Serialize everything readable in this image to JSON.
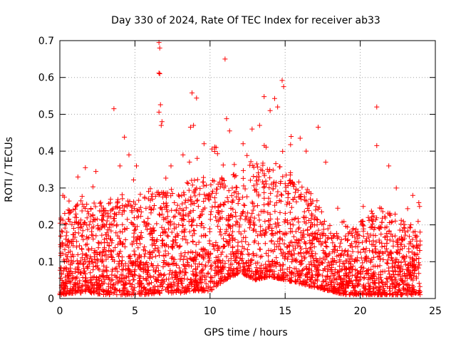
{
  "chart_data": {
    "type": "scatter",
    "title": "Day 330 of 2024, Rate Of TEC Index for receiver ab33",
    "xlabel": "GPS time / hours",
    "ylabel": "ROTI / TECUs",
    "xlim": [
      0,
      25
    ],
    "ylim": [
      0,
      0.7
    ],
    "xticks": [
      0,
      5,
      10,
      15,
      20,
      25
    ],
    "xtick_labels": [
      "0",
      "5",
      "10",
      "15",
      "20",
      "25"
    ],
    "yticks": [
      0,
      0.1,
      0.2,
      0.3,
      0.4,
      0.5,
      0.6,
      0.7
    ],
    "ytick_labels": [
      "0",
      "0.1",
      "0.2",
      "0.3",
      "0.4",
      "0.5",
      "0.6",
      "0.7"
    ],
    "grid": true,
    "marker": "plus",
    "marker_color": "#ff0000",
    "envelope_note_x": [
      0,
      1,
      2,
      3,
      4,
      5,
      6,
      7,
      8,
      9,
      10,
      11,
      12,
      13,
      14,
      15,
      16,
      17,
      18,
      19,
      20,
      21,
      22,
      23,
      24
    ],
    "series": [
      {
        "name": "",
        "points": [
          [
            3.6,
            0.515
          ],
          [
            4.3,
            0.438
          ],
          [
            6.6,
            0.695
          ],
          [
            6.65,
            0.68
          ],
          [
            6.6,
            0.612
          ],
          [
            6.65,
            0.61
          ],
          [
            6.7,
            0.526
          ],
          [
            6.6,
            0.506
          ],
          [
            8.8,
            0.558
          ],
          [
            9.1,
            0.544
          ],
          [
            11.0,
            0.65
          ],
          [
            11.1,
            0.488
          ],
          [
            13.6,
            0.548
          ],
          [
            14.3,
            0.543
          ],
          [
            14.8,
            0.592
          ],
          [
            14.9,
            0.575
          ],
          [
            14.0,
            0.51
          ],
          [
            14.5,
            0.52
          ],
          [
            17.2,
            0.465
          ],
          [
            21.1,
            0.52
          ],
          [
            21.1,
            0.415
          ],
          [
            8.7,
            0.465
          ],
          [
            8.9,
            0.47
          ],
          [
            11.3,
            0.455
          ],
          [
            12.2,
            0.42
          ],
          [
            16.0,
            0.435
          ],
          [
            6.8,
            0.48
          ],
          [
            6.75,
            0.47
          ],
          [
            4.6,
            0.39
          ],
          [
            4.0,
            0.36
          ],
          [
            1.2,
            0.33
          ],
          [
            1.7,
            0.355
          ],
          [
            0.2,
            0.28
          ],
          [
            0.3,
            0.275
          ],
          [
            2.4,
            0.345
          ],
          [
            5.1,
            0.36
          ],
          [
            7.4,
            0.36
          ],
          [
            8.2,
            0.39
          ],
          [
            9.6,
            0.42
          ],
          [
            10.4,
            0.41
          ],
          [
            12.8,
            0.46
          ],
          [
            13.3,
            0.47
          ],
          [
            15.4,
            0.44
          ],
          [
            16.4,
            0.4
          ],
          [
            17.7,
            0.37
          ],
          [
            18.5,
            0.245
          ],
          [
            20.2,
            0.25
          ],
          [
            21.9,
            0.36
          ],
          [
            22.4,
            0.3
          ],
          [
            23.5,
            0.28
          ],
          [
            23.9,
            0.26
          ],
          [
            23.95,
            0.25
          ]
        ]
      }
    ],
    "envelope_upper": [
      0.23,
      0.26,
      0.27,
      0.27,
      0.28,
      0.28,
      0.3,
      0.3,
      0.31,
      0.33,
      0.34,
      0.33,
      0.35,
      0.37,
      0.37,
      0.36,
      0.32,
      0.28,
      0.19,
      0.17,
      0.21,
      0.25,
      0.24,
      0.21,
      0.2
    ],
    "envelope_lower": [
      0.01,
      0.015,
      0.015,
      0.01,
      0.01,
      0.01,
      0.012,
      0.015,
      0.015,
      0.02,
      0.02,
      0.05,
      0.07,
      0.05,
      0.06,
      0.05,
      0.04,
      0.03,
      0.02,
      0.01,
      0.01,
      0.01,
      0.01,
      0.01,
      0.01
    ]
  }
}
